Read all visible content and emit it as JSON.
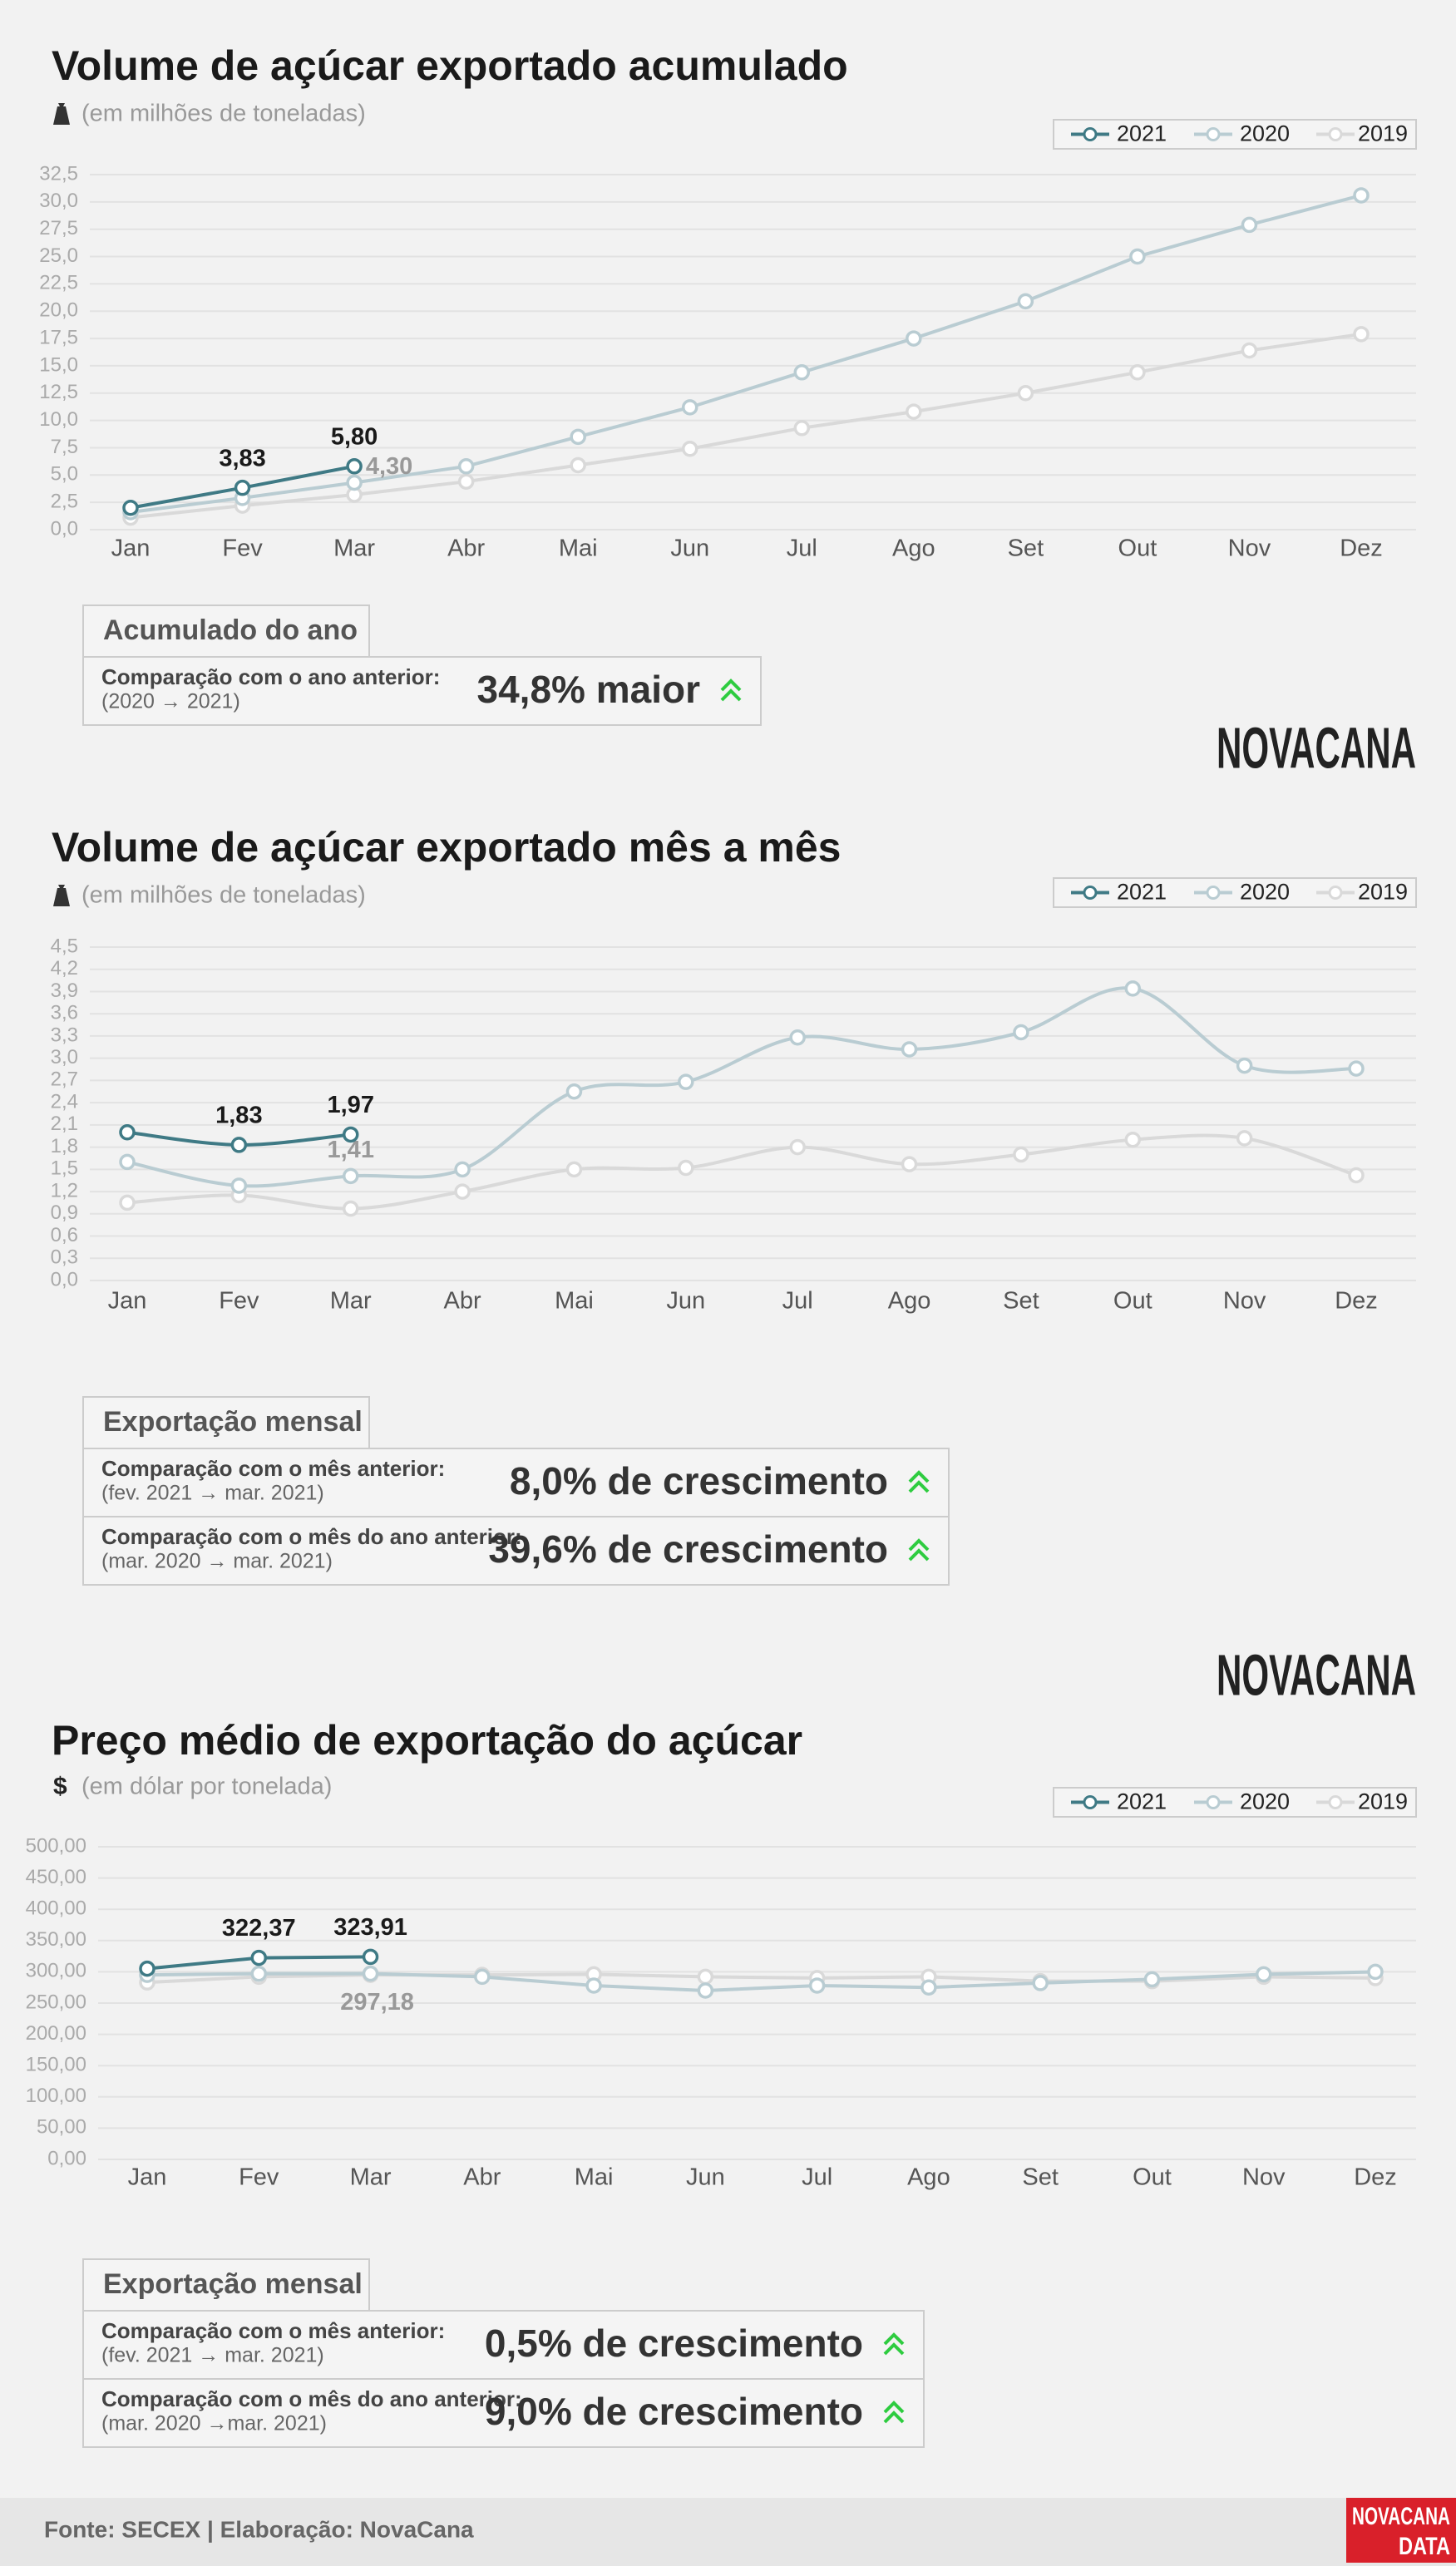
{
  "chart_data": [
    {
      "type": "line",
      "title": "Volume de açúcar exportado acumulado",
      "subtitle": "(em milhões de toneladas)",
      "categories": [
        "Jan",
        "Fev",
        "Mar",
        "Abr",
        "Mai",
        "Jun",
        "Jul",
        "Ago",
        "Set",
        "Out",
        "Nov",
        "Dez"
      ],
      "series": [
        {
          "name": "2021",
          "color": "#3f7a85",
          "values": [
            2.0,
            3.83,
            5.8,
            null,
            null,
            null,
            null,
            null,
            null,
            null,
            null,
            null
          ],
          "value_labels": [
            null,
            "3,83",
            "5,80",
            null,
            null,
            null,
            null,
            null,
            null,
            null,
            null,
            null
          ]
        },
        {
          "name": "2020",
          "color": "#b9ccd2",
          "values": [
            1.6,
            2.9,
            4.3,
            5.8,
            8.5,
            11.2,
            14.4,
            17.5,
            20.9,
            25.0,
            27.9,
            30.6
          ],
          "value_labels": [
            null,
            null,
            "4,30",
            null,
            null,
            null,
            null,
            null,
            null,
            null,
            null,
            null
          ]
        },
        {
          "name": "2019",
          "color": "#d9d9d9",
          "values": [
            1.1,
            2.2,
            3.2,
            4.4,
            5.9,
            7.4,
            9.3,
            10.8,
            12.5,
            14.4,
            16.4,
            17.9
          ]
        }
      ],
      "ylim": [
        0,
        32.5
      ],
      "yticks": [
        {
          "value": 0,
          "label": "0,0"
        },
        {
          "value": 2.5,
          "label": "2,5"
        },
        {
          "value": 5,
          "label": "5,0"
        },
        {
          "value": 7.5,
          "label": "7,5"
        },
        {
          "value": 10,
          "label": "10,0"
        },
        {
          "value": 12.5,
          "label": "12,5"
        },
        {
          "value": 15,
          "label": "15,0"
        },
        {
          "value": 17.5,
          "label": "17,5"
        },
        {
          "value": 20,
          "label": "20,0"
        },
        {
          "value": 22.5,
          "label": "22,5"
        },
        {
          "value": 25,
          "label": "25,0"
        },
        {
          "value": 27.5,
          "label": "27,5"
        },
        {
          "value": 30,
          "label": "30,0"
        },
        {
          "value": 32.5,
          "label": "32,5"
        }
      ],
      "grid": true,
      "legend": "top-right"
    },
    {
      "type": "line",
      "title": "Volume de açúcar exportado mês a mês",
      "subtitle": "(em milhões de toneladas)",
      "smooth": true,
      "categories": [
        "Jan",
        "Fev",
        "Mar",
        "Abr",
        "Mai",
        "Jun",
        "Jul",
        "Ago",
        "Set",
        "Out",
        "Nov",
        "Dez"
      ],
      "series": [
        {
          "name": "2021",
          "color": "#3f7a85",
          "values": [
            2.0,
            1.83,
            1.97,
            null,
            null,
            null,
            null,
            null,
            null,
            null,
            null,
            null
          ],
          "value_labels": [
            null,
            "1,83",
            "1,97",
            null,
            null,
            null,
            null,
            null,
            null,
            null,
            null,
            null
          ]
        },
        {
          "name": "2020",
          "color": "#b9ccd2",
          "values": [
            1.6,
            1.28,
            1.41,
            1.5,
            2.55,
            2.68,
            3.28,
            3.12,
            3.35,
            3.94,
            2.9,
            2.86
          ],
          "value_labels": [
            null,
            null,
            "1,41",
            null,
            null,
            null,
            null,
            null,
            null,
            null,
            null,
            null
          ]
        },
        {
          "name": "2019",
          "color": "#d9d9d9",
          "values": [
            1.05,
            1.15,
            0.97,
            1.2,
            1.5,
            1.52,
            1.8,
            1.57,
            1.7,
            1.9,
            1.92,
            1.42
          ]
        }
      ],
      "ylim": [
        0,
        4.5
      ],
      "yticks": [
        {
          "value": 0,
          "label": "0,0"
        },
        {
          "value": 0.3,
          "label": "0,3"
        },
        {
          "value": 0.6,
          "label": "0,6"
        },
        {
          "value": 0.9,
          "label": "0,9"
        },
        {
          "value": 1.2,
          "label": "1,2"
        },
        {
          "value": 1.5,
          "label": "1,5"
        },
        {
          "value": 1.8,
          "label": "1,8"
        },
        {
          "value": 2.1,
          "label": "2,1"
        },
        {
          "value": 2.4,
          "label": "2,4"
        },
        {
          "value": 2.7,
          "label": "2,7"
        },
        {
          "value": 3.0,
          "label": "3,0"
        },
        {
          "value": 3.3,
          "label": "3,3"
        },
        {
          "value": 3.6,
          "label": "3,6"
        },
        {
          "value": 3.9,
          "label": "3,9"
        },
        {
          "value": 4.2,
          "label": "4,2"
        },
        {
          "value": 4.5,
          "label": "4,5"
        }
      ],
      "grid": true,
      "legend": "top-right"
    },
    {
      "type": "line",
      "title": "Preço médio de exportação do açúcar",
      "subtitle": "(em dólar por tonelada)",
      "icon": "$",
      "categories": [
        "Jan",
        "Fev",
        "Mar",
        "Abr",
        "Mai",
        "Jun",
        "Jul",
        "Ago",
        "Set",
        "Out",
        "Nov",
        "Dez"
      ],
      "series": [
        {
          "name": "2021",
          "color": "#3f7a85",
          "values": [
            305,
            322.37,
            323.91,
            null,
            null,
            null,
            null,
            null,
            null,
            null,
            null,
            null
          ],
          "value_labels": [
            null,
            "322,37",
            "323,91",
            null,
            null,
            null,
            null,
            null,
            null,
            null,
            null,
            null
          ]
        },
        {
          "name": "2020",
          "color": "#b9ccd2",
          "values": [
            295,
            297,
            297.18,
            292,
            278,
            270,
            278,
            275,
            282,
            288,
            296,
            300
          ],
          "value_labels": [
            null,
            null,
            "297,18",
            null,
            null,
            null,
            null,
            null,
            null,
            null,
            null,
            null
          ]
        },
        {
          "name": "2019",
          "color": "#d9d9d9",
          "values": [
            283,
            292,
            295,
            295,
            296,
            292,
            290,
            292,
            285,
            285,
            292,
            290
          ]
        }
      ],
      "ylim": [
        0,
        500
      ],
      "yticks": [
        {
          "value": 0,
          "label": "0,00"
        },
        {
          "value": 50,
          "label": "50,00"
        },
        {
          "value": 100,
          "label": "100,00"
        },
        {
          "value": 150,
          "label": "150,00"
        },
        {
          "value": 200,
          "label": "200,00"
        },
        {
          "value": 250,
          "label": "250,00"
        },
        {
          "value": 300,
          "label": "300,00"
        },
        {
          "value": 350,
          "label": "350,00"
        },
        {
          "value": 400,
          "label": "400,00"
        },
        {
          "value": 450,
          "label": "450,00"
        },
        {
          "value": 500,
          "label": "500,00"
        }
      ],
      "grid": true,
      "legend": "top-right"
    }
  ],
  "summaries": [
    {
      "header": "Acumulado do ano",
      "rows": [
        {
          "label": "Comparação com o ano anterior:",
          "period": "(2020 → 2021)",
          "value": "34,8% maior"
        }
      ]
    },
    {
      "header": "Exportação mensal",
      "rows": [
        {
          "label": "Comparação com o mês anterior:",
          "period": "(fev. 2021 → mar. 2021)",
          "value": "8,0% de crescimento"
        },
        {
          "label": "Comparação com o mês do ano anterior:",
          "period": "(mar. 2020 → mar. 2021)",
          "value": "39,6% de crescimento"
        }
      ]
    },
    {
      "header": "Exportação mensal",
      "rows": [
        {
          "label": "Comparação com o mês anterior:",
          "period": "(fev. 2021 → mar. 2021)",
          "value": "0,5% de crescimento"
        },
        {
          "label": "Comparação com o mês do ano anterior:",
          "period": "(mar. 2020 →mar. 2021)",
          "value": "9,0% de crescimento"
        }
      ]
    }
  ],
  "logos": [
    "NOVACANA",
    "NOVACANA"
  ],
  "footer": {
    "source": "Fonte: SECEX | Elaboração: NovaCana",
    "badge": [
      "NOVACANA",
      "DATA"
    ]
  }
}
